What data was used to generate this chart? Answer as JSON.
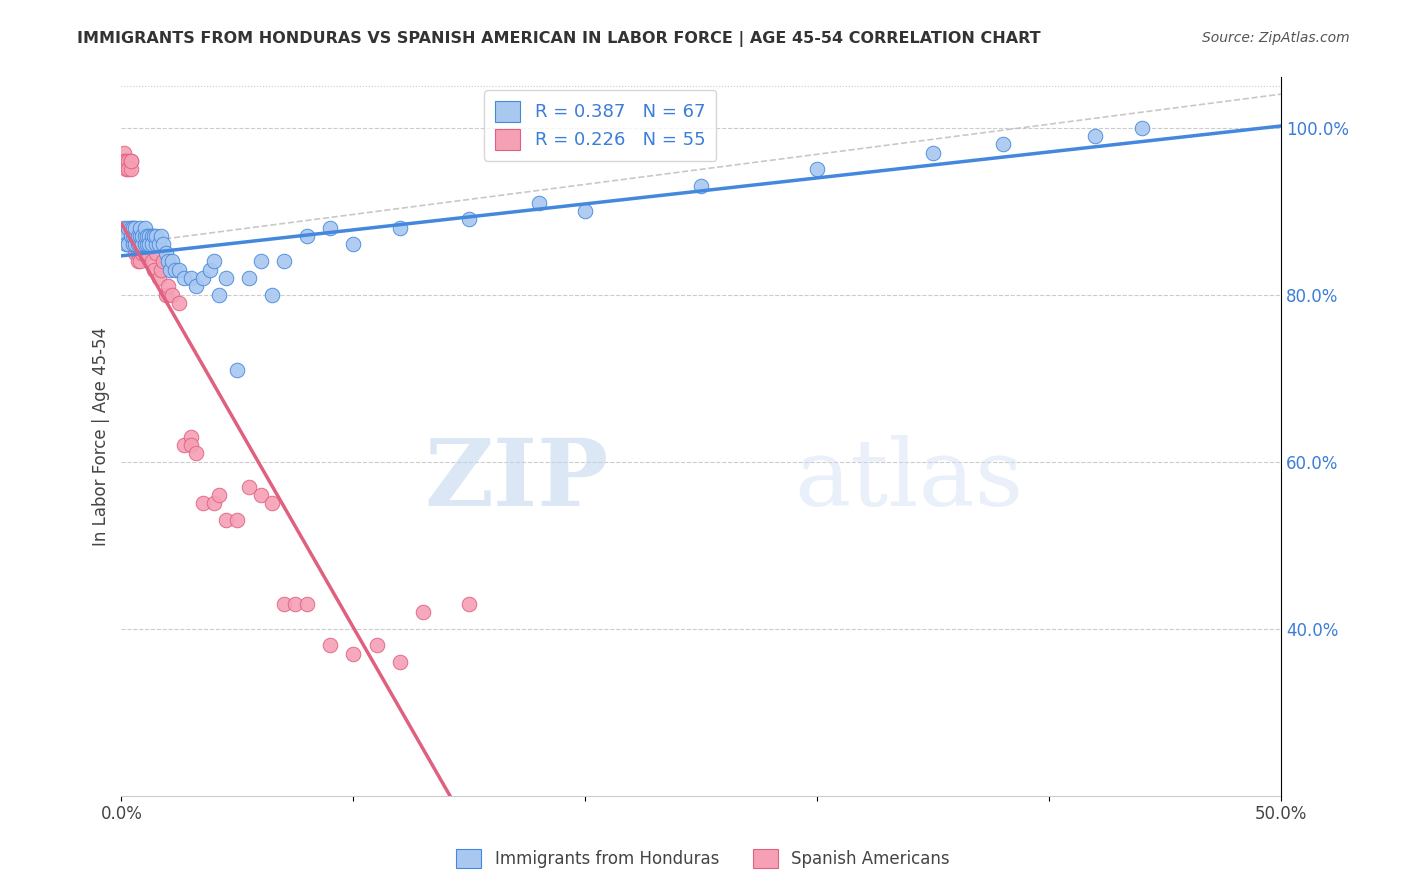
{
  "title": "IMMIGRANTS FROM HONDURAS VS SPANISH AMERICAN IN LABOR FORCE | AGE 45-54 CORRELATION CHART",
  "source": "Source: ZipAtlas.com",
  "ylabel": "In Labor Force | Age 45-54",
  "x_min": 0.0,
  "x_max": 0.5,
  "y_min": 0.2,
  "y_max": 1.06,
  "x_ticks": [
    0.0,
    0.1,
    0.2,
    0.3,
    0.4,
    0.5
  ],
  "x_tick_labels": [
    "0.0%",
    "",
    "",
    "",
    "",
    "50.0%"
  ],
  "y_ticks_right": [
    0.4,
    0.6,
    0.8,
    1.0
  ],
  "y_tick_labels_right": [
    "40.0%",
    "60.0%",
    "80.0%",
    "100.0%"
  ],
  "legend_blue_label": "R = 0.387   N = 67",
  "legend_pink_label": "R = 0.226   N = 55",
  "legend_bottom_blue": "Immigrants from Honduras",
  "legend_bottom_pink": "Spanish Americans",
  "blue_color": "#A8C8F0",
  "pink_color": "#F5A0B5",
  "blue_line_color": "#4488DD",
  "pink_line_color": "#E06080",
  "dashed_line_color": "#BBBBBB",
  "watermark_zip": "ZIP",
  "watermark_atlas": "atlas",
  "blue_x": [
    0.001,
    0.002,
    0.002,
    0.003,
    0.003,
    0.004,
    0.004,
    0.005,
    0.005,
    0.005,
    0.006,
    0.006,
    0.006,
    0.007,
    0.007,
    0.008,
    0.008,
    0.008,
    0.009,
    0.009,
    0.01,
    0.01,
    0.01,
    0.011,
    0.011,
    0.012,
    0.012,
    0.013,
    0.013,
    0.014,
    0.015,
    0.015,
    0.016,
    0.017,
    0.018,
    0.019,
    0.02,
    0.021,
    0.022,
    0.023,
    0.025,
    0.027,
    0.03,
    0.032,
    0.035,
    0.038,
    0.04,
    0.042,
    0.045,
    0.05,
    0.055,
    0.06,
    0.065,
    0.07,
    0.08,
    0.09,
    0.1,
    0.12,
    0.15,
    0.18,
    0.2,
    0.25,
    0.3,
    0.35,
    0.38,
    0.42,
    0.44
  ],
  "blue_y": [
    0.88,
    0.87,
    0.86,
    0.88,
    0.86,
    0.87,
    0.88,
    0.86,
    0.87,
    0.88,
    0.86,
    0.87,
    0.88,
    0.86,
    0.87,
    0.86,
    0.87,
    0.88,
    0.86,
    0.87,
    0.86,
    0.87,
    0.88,
    0.86,
    0.87,
    0.87,
    0.86,
    0.87,
    0.86,
    0.87,
    0.86,
    0.87,
    0.86,
    0.87,
    0.86,
    0.85,
    0.84,
    0.83,
    0.84,
    0.83,
    0.83,
    0.82,
    0.82,
    0.81,
    0.82,
    0.83,
    0.84,
    0.8,
    0.82,
    0.71,
    0.82,
    0.84,
    0.8,
    0.84,
    0.87,
    0.88,
    0.86,
    0.88,
    0.89,
    0.91,
    0.9,
    0.93,
    0.95,
    0.97,
    0.98,
    0.99,
    1.0
  ],
  "pink_x": [
    0.001,
    0.001,
    0.002,
    0.002,
    0.003,
    0.003,
    0.004,
    0.004,
    0.004,
    0.005,
    0.005,
    0.005,
    0.006,
    0.006,
    0.007,
    0.007,
    0.008,
    0.008,
    0.009,
    0.009,
    0.01,
    0.01,
    0.011,
    0.012,
    0.013,
    0.014,
    0.015,
    0.016,
    0.017,
    0.018,
    0.019,
    0.02,
    0.022,
    0.025,
    0.027,
    0.03,
    0.03,
    0.032,
    0.035,
    0.04,
    0.042,
    0.045,
    0.05,
    0.055,
    0.06,
    0.065,
    0.07,
    0.075,
    0.08,
    0.09,
    0.1,
    0.11,
    0.12,
    0.13,
    0.15
  ],
  "pink_y": [
    0.97,
    0.96,
    0.96,
    0.95,
    0.96,
    0.95,
    0.96,
    0.95,
    0.96,
    0.88,
    0.87,
    0.86,
    0.86,
    0.85,
    0.85,
    0.84,
    0.85,
    0.84,
    0.86,
    0.85,
    0.86,
    0.85,
    0.85,
    0.87,
    0.84,
    0.83,
    0.85,
    0.82,
    0.83,
    0.84,
    0.8,
    0.81,
    0.8,
    0.79,
    0.62,
    0.63,
    0.62,
    0.61,
    0.55,
    0.55,
    0.56,
    0.53,
    0.53,
    0.57,
    0.56,
    0.55,
    0.43,
    0.43,
    0.43,
    0.38,
    0.37,
    0.38,
    0.36,
    0.42,
    0.43
  ]
}
